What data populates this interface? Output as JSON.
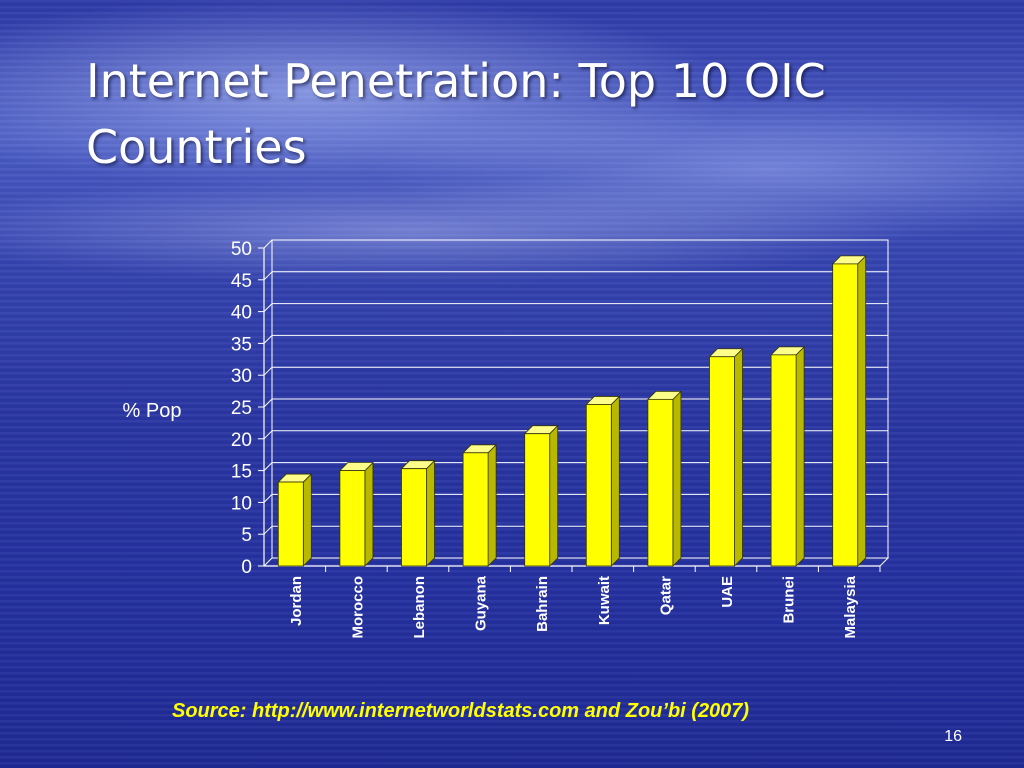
{
  "slide": {
    "title": "Internet Penetration: Top 10 OIC Countries",
    "source": "Source: http://www.internetworldstats.com and Zou’bi (2007)",
    "page_number": "16"
  },
  "chart_data": {
    "type": "bar",
    "title": "",
    "xlabel": "",
    "ylabel": "% Pop",
    "ylim": [
      0,
      50
    ],
    "yticks": [
      0,
      5,
      10,
      15,
      20,
      25,
      30,
      35,
      40,
      45,
      50
    ],
    "grid": true,
    "categories": [
      "Jordan",
      "Morocco",
      "Lebanon",
      "Guyana",
      "Bahrain",
      "Kuwait",
      "Qatar",
      "UAE",
      "Brunei",
      "Malaysia"
    ],
    "values": [
      13.2,
      15.0,
      15.3,
      17.8,
      20.8,
      25.4,
      26.2,
      32.9,
      33.2,
      47.5
    ],
    "colors": {
      "bar": "#ffff00",
      "bar_side": "#b8b800",
      "bar_top": "#fdfd8a",
      "grid": "#ffffff",
      "text": "#ffffff"
    }
  }
}
